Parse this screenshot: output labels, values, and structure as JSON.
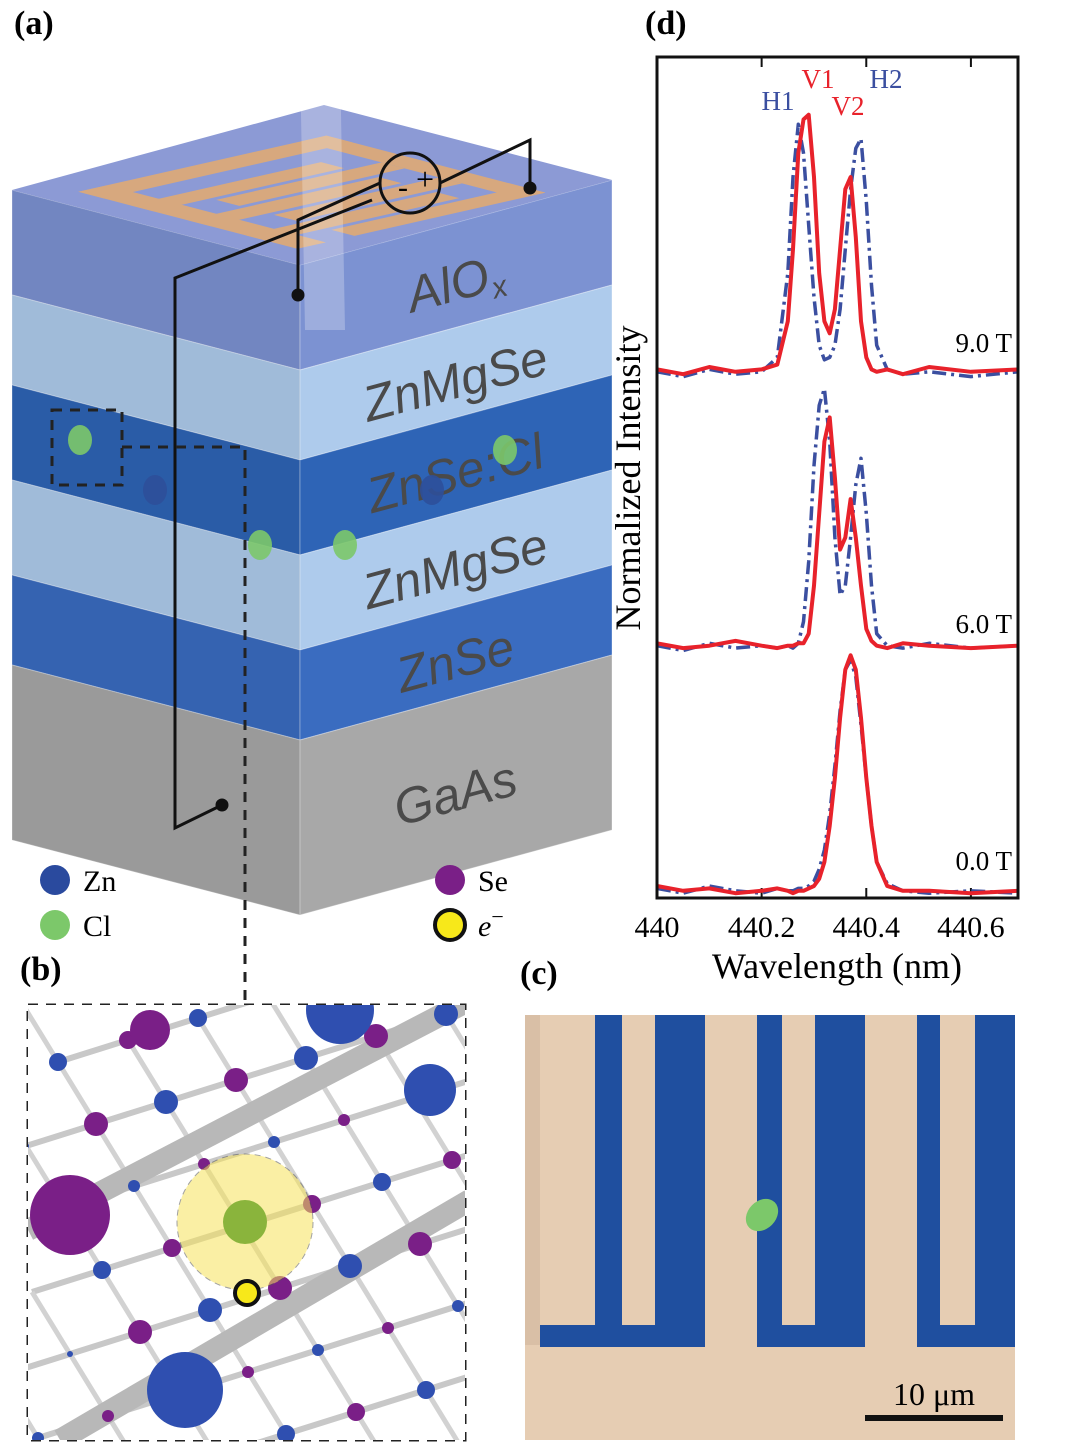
{
  "panels": {
    "a": {
      "label": "(a)",
      "layers": [
        {
          "label": "AlO",
          "sub": "x"
        },
        {
          "label": "ZnMgSe"
        },
        {
          "label": "ZnSe:Cl"
        },
        {
          "label": "ZnMgSe"
        },
        {
          "label": "ZnSe"
        },
        {
          "label": "GaAs"
        }
      ],
      "circuit": {
        "minus": "-",
        "plus": "+"
      },
      "legend": [
        {
          "label": "Zn"
        },
        {
          "label": "Cl"
        },
        {
          "label": "Se"
        },
        {
          "label": "e",
          "sup": "−"
        }
      ]
    },
    "b": {
      "label": "(b)"
    },
    "c": {
      "label": "(c)",
      "scale_bar": "10 μm"
    }
  },
  "chart_data": {
    "type": "line",
    "panel_label": "(d)",
    "x_label": "Wavelength (nm)",
    "y_label": "Normalized Intensity",
    "xlim": [
      440,
      440.69
    ],
    "ylim": [
      0,
      3.5
    ],
    "xticks": [
      440,
      440.2,
      440.4,
      440.6
    ],
    "x": [
      440.0,
      440.05,
      440.1,
      440.15,
      440.2,
      440.23,
      440.25,
      440.26,
      440.27,
      440.28,
      440.29,
      440.3,
      440.31,
      440.32,
      440.33,
      440.34,
      440.35,
      440.36,
      440.37,
      440.38,
      440.39,
      440.4,
      440.41,
      440.42,
      440.44,
      440.47,
      440.52,
      440.6,
      440.69
    ],
    "field_labels": [
      "9.0 T",
      "6.0 T",
      "0.0 T"
    ],
    "peak_labels": [
      {
        "text": "H1",
        "color": "#3b4fa0"
      },
      {
        "text": "V1",
        "color": "#e8222b"
      },
      {
        "text": "V2",
        "color": "#e8222b"
      },
      {
        "text": "H2",
        "color": "#3b4fa0"
      }
    ],
    "series": [
      {
        "color": "#3b4fa0",
        "style": "dashdot",
        "values": [
          2.19,
          2.17,
          2.2,
          2.18,
          2.19,
          2.25,
          2.6,
          3.0,
          3.22,
          3.1,
          2.8,
          2.5,
          2.3,
          2.24,
          2.25,
          2.3,
          2.45,
          2.7,
          2.95,
          3.12,
          3.16,
          2.9,
          2.55,
          2.3,
          2.2,
          2.18,
          2.19,
          2.17,
          2.19
        ]
      },
      {
        "color": "#e8222b",
        "style": "solid",
        "values": [
          2.2,
          2.18,
          2.21,
          2.19,
          2.2,
          2.22,
          2.4,
          2.7,
          3.1,
          3.24,
          3.26,
          3.0,
          2.6,
          2.4,
          2.35,
          2.45,
          2.7,
          2.95,
          3.0,
          2.75,
          2.4,
          2.25,
          2.2,
          2.19,
          2.2,
          2.18,
          2.21,
          2.19,
          2.2
        ]
      },
      {
        "color": "#3b4fa0",
        "style": "dashdot",
        "values": [
          1.05,
          1.03,
          1.06,
          1.04,
          1.05,
          1.04,
          1.05,
          1.04,
          1.06,
          1.15,
          1.4,
          1.8,
          2.05,
          2.12,
          1.9,
          1.5,
          1.26,
          1.3,
          1.5,
          1.72,
          1.83,
          1.6,
          1.3,
          1.1,
          1.05,
          1.04,
          1.06,
          1.04,
          1.05
        ]
      },
      {
        "color": "#e8222b",
        "style": "solid",
        "values": [
          1.06,
          1.04,
          1.05,
          1.07,
          1.05,
          1.04,
          1.05,
          1.05,
          1.06,
          1.06,
          1.1,
          1.3,
          1.6,
          1.9,
          2.0,
          1.75,
          1.45,
          1.5,
          1.66,
          1.5,
          1.3,
          1.12,
          1.07,
          1.05,
          1.04,
          1.06,
          1.05,
          1.04,
          1.05
        ]
      },
      {
        "color": "#3b4fa0",
        "style": "dashdot",
        "values": [
          0.04,
          0.02,
          0.05,
          0.03,
          0.02,
          0.04,
          0.03,
          0.03,
          0.04,
          0.04,
          0.05,
          0.07,
          0.12,
          0.2,
          0.35,
          0.55,
          0.78,
          0.95,
          0.99,
          0.92,
          0.72,
          0.5,
          0.3,
          0.15,
          0.06,
          0.03,
          0.02,
          0.03,
          0.02
        ]
      },
      {
        "color": "#e8222b",
        "style": "solid",
        "values": [
          0.05,
          0.03,
          0.04,
          0.02,
          0.03,
          0.04,
          0.03,
          0.02,
          0.03,
          0.03,
          0.04,
          0.05,
          0.08,
          0.15,
          0.3,
          0.5,
          0.75,
          0.95,
          1.01,
          0.95,
          0.75,
          0.5,
          0.3,
          0.15,
          0.05,
          0.03,
          0.03,
          0.02,
          0.03
        ]
      }
    ]
  }
}
